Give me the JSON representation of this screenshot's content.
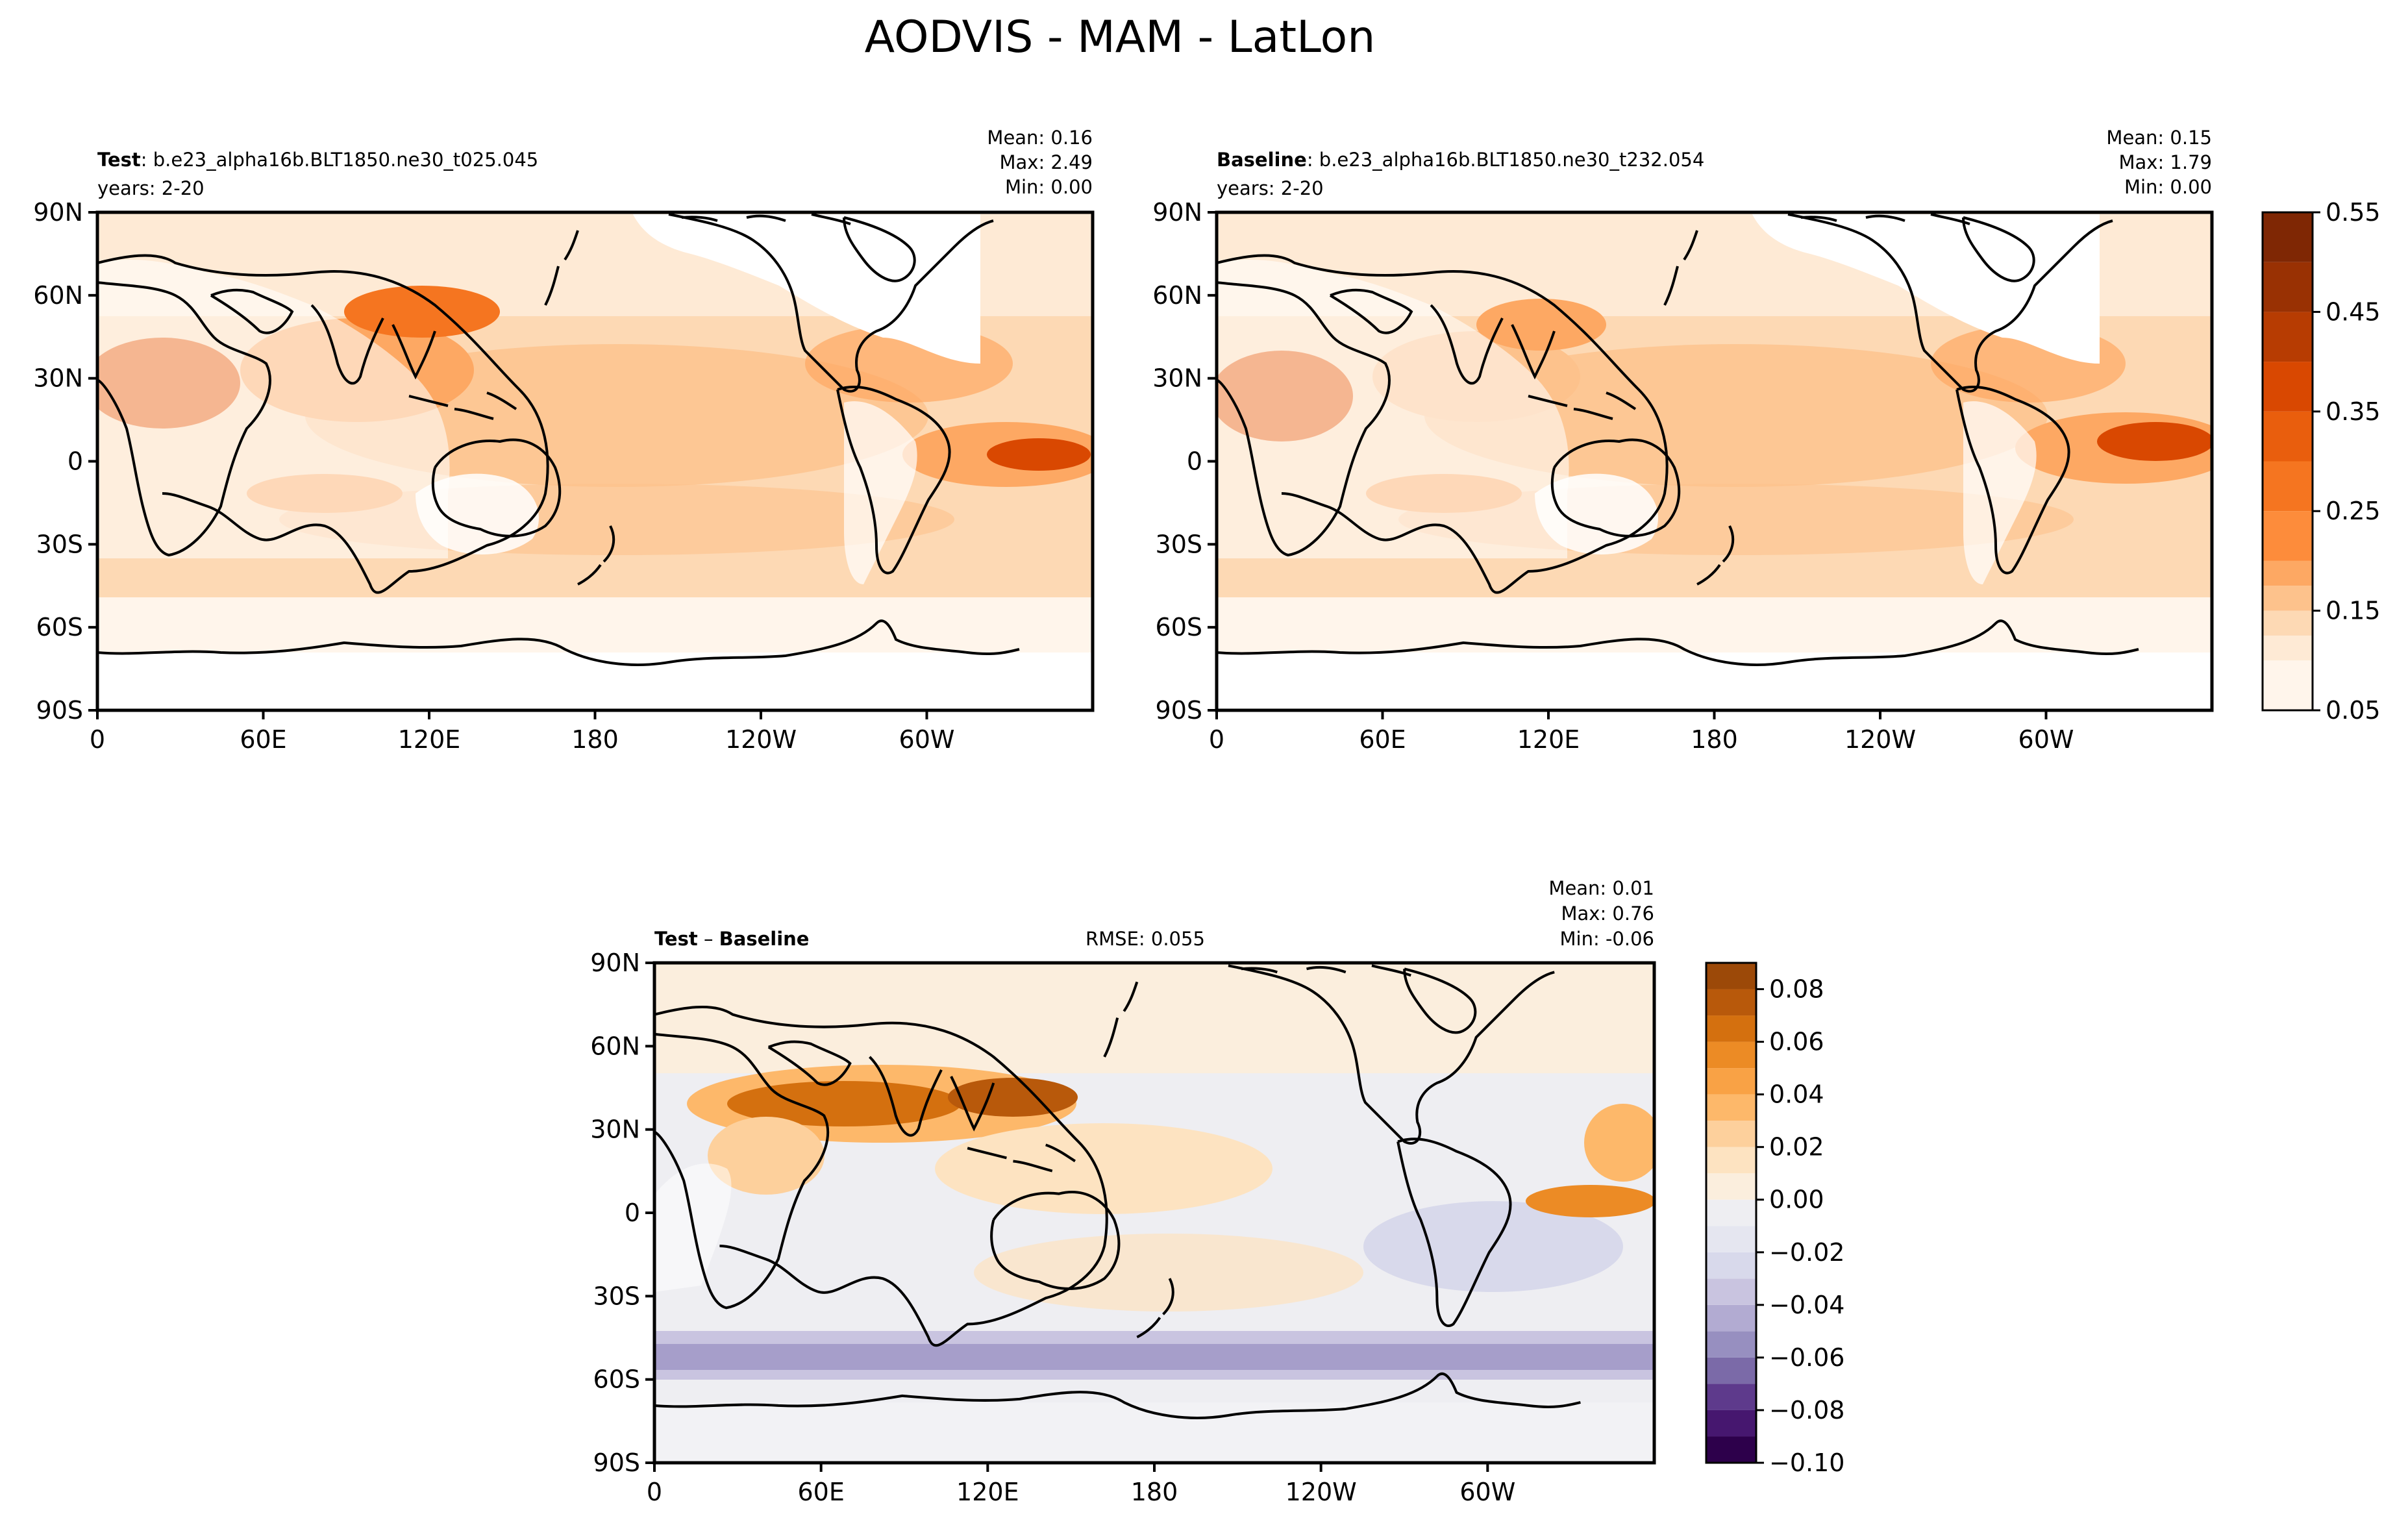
{
  "figure": {
    "title": "AODVIS - MAM - LatLon"
  },
  "chart_data": [
    {
      "type": "heatmap",
      "panel": "test",
      "label_bold": "Test",
      "label_rest": ": b.e23_alpha16b.BLT1850.ne30_t025.045",
      "years": "years: 2-20",
      "stats": {
        "mean": "Mean:  0.16",
        "max": "Max:  2.49",
        "min": "Min:  0.00"
      },
      "xticks": [
        "0",
        "60E",
        "120E",
        "180",
        "120W",
        "60W"
      ],
      "yticks": [
        "90N",
        "60N",
        "30N",
        "0",
        "30S",
        "60S",
        "90S"
      ],
      "xlim": [
        0,
        360
      ],
      "ylim": [
        -90,
        90
      ]
    },
    {
      "type": "heatmap",
      "panel": "baseline",
      "label_bold": "Baseline",
      "label_rest": ": b.e23_alpha16b.BLT1850.ne30_t232.054",
      "years": "years: 2-20",
      "stats": {
        "mean": "Mean:  0.15",
        "max": "Max:  1.79",
        "min": "Min:  0.00"
      },
      "xticks": [
        "0",
        "60E",
        "120E",
        "180",
        "120W",
        "60W"
      ],
      "yticks": [
        "90N",
        "60N",
        "30N",
        "0",
        "30S",
        "60S",
        "90S"
      ],
      "xlim": [
        0,
        360
      ],
      "ylim": [
        -90,
        90
      ],
      "colorbar": {
        "levels": [
          0.05,
          0.1,
          0.125,
          0.15,
          0.175,
          0.2,
          0.25,
          0.3,
          0.35,
          0.4,
          0.45,
          0.5,
          0.55
        ],
        "ticks": [
          "0.05",
          "0.15",
          "0.25",
          "0.35",
          "0.45",
          "0.55"
        ],
        "colors": [
          "#fff5eb",
          "#feead5",
          "#fdd9b4",
          "#fdc28c",
          "#fda863",
          "#fd8c3b",
          "#f57520",
          "#e95e0d",
          "#d94801",
          "#b73c02",
          "#993103",
          "#7f2704"
        ]
      }
    },
    {
      "type": "heatmap",
      "panel": "diff",
      "label_bold_a": "Test",
      "label_minus": " – ",
      "label_bold_b": "Baseline",
      "rmse": "RMSE: 0.055",
      "stats": {
        "mean": "Mean:  0.01",
        "max": "Max:  0.76",
        "min": "Min: -0.06"
      },
      "xticks": [
        "0",
        "60E",
        "120E",
        "180",
        "120W",
        "60W"
      ],
      "yticks": [
        "90N",
        "60N",
        "30N",
        "0",
        "30S",
        "60S",
        "90S"
      ],
      "xlim": [
        0,
        360
      ],
      "ylim": [
        -90,
        90
      ],
      "colorbar": {
        "levels": [
          -0.1,
          -0.09,
          -0.08,
          -0.07,
          -0.06,
          -0.05,
          -0.04,
          -0.03,
          -0.02,
          -0.01,
          0.0,
          0.01,
          0.02,
          0.03,
          0.04,
          0.05,
          0.06,
          0.07,
          0.08,
          0.09
        ],
        "ticks": [
          "0.08",
          "0.06",
          "0.04",
          "0.02",
          "0.00",
          "−0.02",
          "−0.04",
          "−0.06",
          "−0.08",
          "−0.10"
        ],
        "colors": [
          "#2d004b",
          "#46176f",
          "#5e3a8c",
          "#7b6aa8",
          "#978fc0",
          "#b2abd2",
          "#c9c4e0",
          "#d8d9eb",
          "#e5e6f0",
          "#eeeef2",
          "#fbeedd",
          "#fde3c1",
          "#fdd09c",
          "#fdb86a",
          "#f9a245",
          "#ec8b25",
          "#d4700f",
          "#b8590b",
          "#9c4908"
        ]
      }
    }
  ]
}
